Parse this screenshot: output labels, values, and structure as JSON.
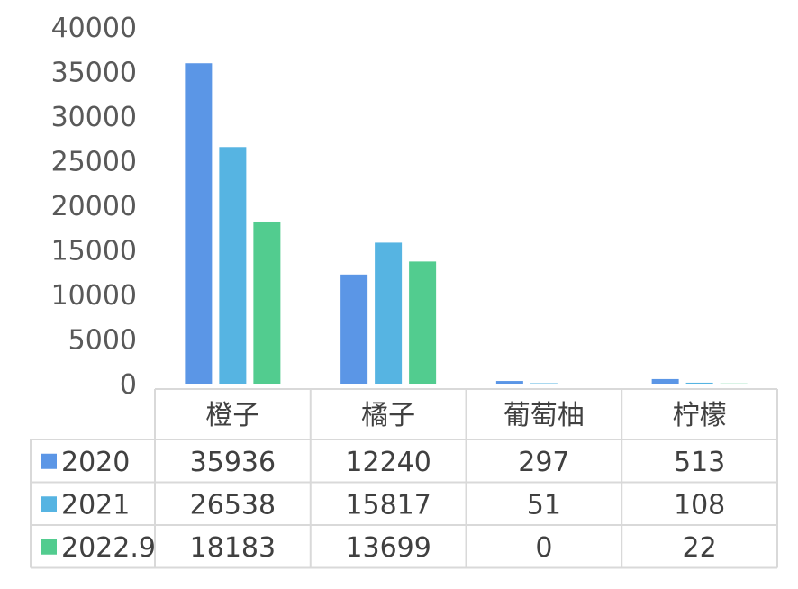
{
  "chart_data": {
    "type": "bar",
    "categories": [
      "橙子",
      "橘子",
      "葡萄柚",
      "柠檬"
    ],
    "series": [
      {
        "name": "2020",
        "values": [
          35936,
          12240,
          297,
          513
        ],
        "color": "#5b96e6"
      },
      {
        "name": "2021",
        "values": [
          26538,
          15817,
          51,
          108
        ],
        "color": "#56b4e2"
      },
      {
        "name": "2022.9",
        "values": [
          18183,
          13699,
          0,
          22
        ],
        "color": "#52cc8f"
      }
    ],
    "ylim": [
      0,
      40000
    ],
    "yticks": [
      0,
      5000,
      10000,
      15000,
      20000,
      25000,
      30000,
      35000,
      40000
    ],
    "grid": false,
    "legend": "data-table"
  }
}
